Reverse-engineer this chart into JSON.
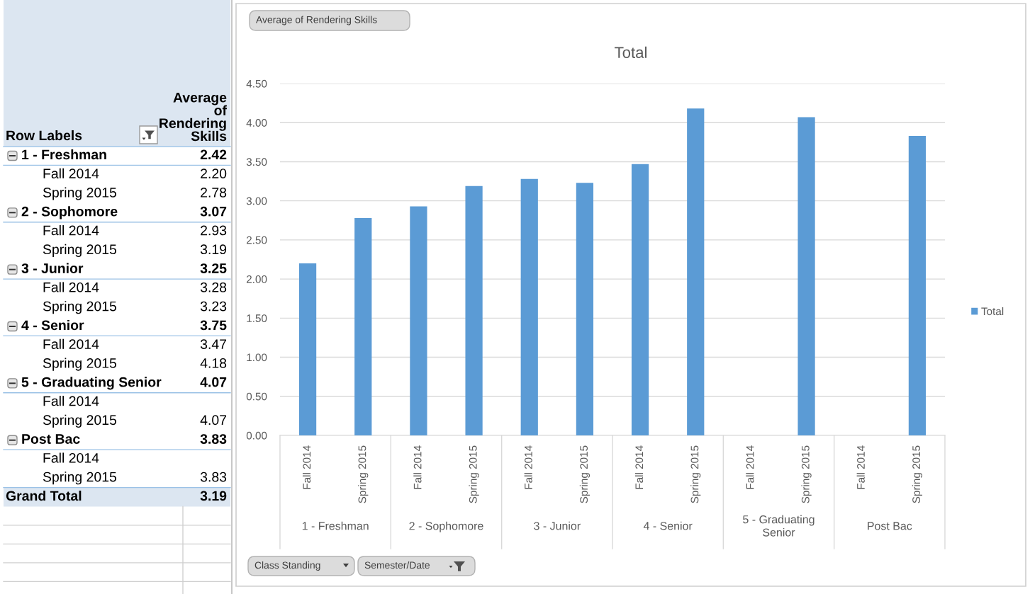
{
  "chart_data": [
    {
      "type": "other",
      "xlabel": "Row Labels",
      "ylabel": "Average of Rendering Skills",
      "categories": [
        "1 - Freshman",
        "Fall 2014",
        "Spring 2015",
        "2 - Sophomore",
        "Fall 2014",
        "Spring 2015",
        "3 - Junior",
        "Fall 2014",
        "Spring 2015",
        "4 - Senior",
        "Fall 2014",
        "Spring 2015",
        "5 - Graduating Senior",
        "Fall 2014",
        "Spring 2015",
        "Post Bac",
        "Fall 2014",
        "Spring 2015",
        "Grand Total"
      ],
      "series": [
        {
          "values": [
            2.42,
            null,
            null,
            3.07,
            null,
            null,
            3.25,
            null,
            null,
            3.75,
            null,
            null,
            4.07,
            null,
            null,
            3.83,
            null,
            null,
            null
          ],
          "value_labels": [
            "2.42",
            null,
            null,
            "3.07",
            null,
            null,
            "3.25",
            null,
            null,
            "3.75",
            null,
            null,
            "4.07",
            null,
            null,
            "3.83",
            null,
            null,
            null
          ]
        },
        {
          "values": [
            null,
            2.2,
            2.78,
            null,
            2.93,
            3.19,
            null,
            3.28,
            3.23,
            null,
            3.47,
            4.18,
            null,
            null,
            4.07,
            null,
            null,
            3.83,
            null
          ],
          "value_labels": [
            null,
            "2.20",
            "2.78",
            null,
            "2.93",
            "3.19",
            null,
            "3.28",
            "3.23",
            null,
            "3.47",
            "4.18",
            null,
            null,
            "4.07",
            null,
            null,
            "3.83",
            null
          ]
        },
        {
          "values": [
            null,
            null,
            null,
            null,
            null,
            null,
            null,
            null,
            null,
            null,
            null,
            null,
            null,
            null,
            null,
            null,
            null,
            null,
            3.19
          ],
          "value_labels": [
            null,
            null,
            null,
            null,
            null,
            null,
            null,
            null,
            null,
            null,
            null,
            null,
            null,
            null,
            null,
            null,
            null,
            null,
            "3.19"
          ]
        }
      ]
    },
    {
      "type": "bar",
      "title": "Total",
      "ylabel": "Average of Rendering Skills",
      "categories": [
        "Fall 2014",
        "Spring 2015",
        "Fall 2014",
        "Spring 2015",
        "Fall 2014",
        "Spring 2015",
        "Fall 2014",
        "Spring 2015",
        "Fall 2014",
        "Spring 2015",
        "Fall 2014",
        "Spring 2015"
      ],
      "series": [
        {
          "name": "Total",
          "color": "#5b9bd5",
          "values": [
            2.2,
            2.78,
            2.93,
            3.19,
            3.28,
            3.23,
            3.47,
            4.18,
            null,
            4.07,
            null,
            3.83
          ]
        }
      ],
      "ylim": [
        0,
        4.5
      ],
      "yticks": [
        {
          "value": 0,
          "label": "0.00"
        },
        {
          "value": 0.5,
          "label": "0.50"
        },
        {
          "value": 1,
          "label": "1.00"
        },
        {
          "value": 1.5,
          "label": "1.50"
        },
        {
          "value": 2,
          "label": "2.00"
        },
        {
          "value": 2.5,
          "label": "2.50"
        },
        {
          "value": 3,
          "label": "3.00"
        },
        {
          "value": 3.5,
          "label": "3.50"
        },
        {
          "value": 4,
          "label": "4.00"
        },
        {
          "value": 4.5,
          "label": "4.50"
        }
      ],
      "grid": "y",
      "legend": "right",
      "annotations": [
        "1 - Freshman",
        "2 - Sophomore",
        "3 - Junior",
        "4 - Senior",
        "5 - Graduating Senior",
        "Post Bac",
        "Class Standing",
        "Semester/Date"
      ]
    }
  ]
}
